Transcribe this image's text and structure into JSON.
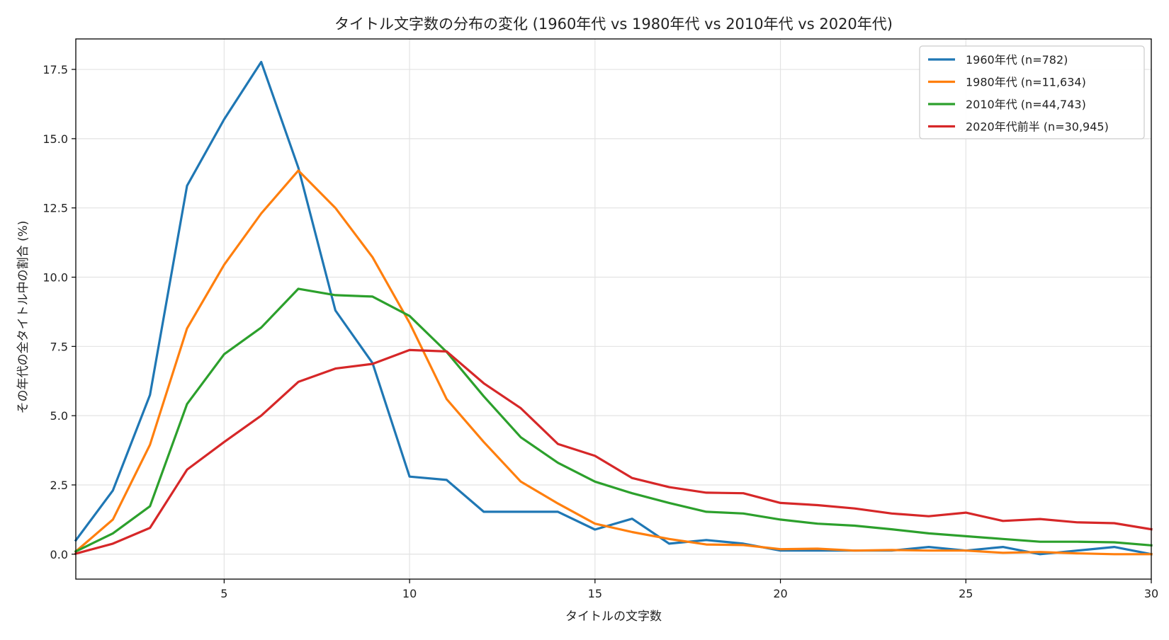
{
  "chart_data": {
    "type": "line",
    "title": "タイトル文字数の分布の変化 (1960年代 vs 1980年代 vs 2010年代 vs 2020年代)",
    "xlabel": "タイトルの文字数",
    "ylabel": "その年代の全タイトル中の割合 (%)",
    "xlim": [
      1,
      30
    ],
    "ylim": [
      -0.9,
      18.6
    ],
    "xticks": [
      5,
      10,
      15,
      20,
      25,
      30
    ],
    "yticks": [
      0.0,
      2.5,
      5.0,
      7.5,
      10.0,
      12.5,
      15.0,
      17.5
    ],
    "grid": true,
    "legend_position": "top-right",
    "x": [
      1,
      2,
      3,
      4,
      5,
      6,
      7,
      8,
      9,
      10,
      11,
      12,
      13,
      14,
      15,
      16,
      17,
      18,
      19,
      20,
      21,
      22,
      23,
      24,
      25,
      26,
      27,
      28,
      29,
      30
    ],
    "series": [
      {
        "name": "1960年代 (n=782)",
        "color": "#1f77b4",
        "values": [
          0.5,
          2.3,
          5.75,
          13.3,
          15.7,
          17.77,
          13.95,
          8.8,
          6.9,
          2.8,
          2.68,
          1.53,
          1.53,
          1.53,
          0.89,
          1.28,
          0.38,
          0.51,
          0.38,
          0.13,
          0.13,
          0.13,
          0.13,
          0.26,
          0.13,
          0.26,
          0.0,
          0.13,
          0.26,
          0.0
        ]
      },
      {
        "name": "1980年代 (n=11,634)",
        "color": "#ff7f0e",
        "values": [
          0.1,
          1.25,
          3.95,
          8.15,
          10.45,
          12.3,
          13.85,
          12.5,
          10.72,
          8.35,
          5.6,
          4.05,
          2.62,
          1.83,
          1.1,
          0.8,
          0.55,
          0.35,
          0.33,
          0.18,
          0.2,
          0.13,
          0.15,
          0.13,
          0.13,
          0.05,
          0.08,
          0.03,
          0.0,
          0.0
        ]
      },
      {
        "name": "2010年代 (n=44,743)",
        "color": "#2ca02c",
        "values": [
          0.1,
          0.75,
          1.73,
          5.42,
          7.22,
          8.18,
          9.58,
          9.35,
          9.3,
          8.6,
          7.3,
          5.7,
          4.22,
          3.3,
          2.62,
          2.2,
          1.85,
          1.53,
          1.47,
          1.25,
          1.1,
          1.03,
          0.9,
          0.75,
          0.65,
          0.55,
          0.45,
          0.45,
          0.43,
          0.32
        ]
      },
      {
        "name": "2020年代前半 (n=30,945)",
        "color": "#d62728",
        "values": [
          0.02,
          0.38,
          0.95,
          3.05,
          4.05,
          5.0,
          6.22,
          6.7,
          6.87,
          7.37,
          7.32,
          6.17,
          5.27,
          3.98,
          3.55,
          2.75,
          2.42,
          2.22,
          2.2,
          1.85,
          1.77,
          1.65,
          1.47,
          1.37,
          1.5,
          1.2,
          1.27,
          1.15,
          1.12,
          0.9
        ]
      }
    ]
  }
}
